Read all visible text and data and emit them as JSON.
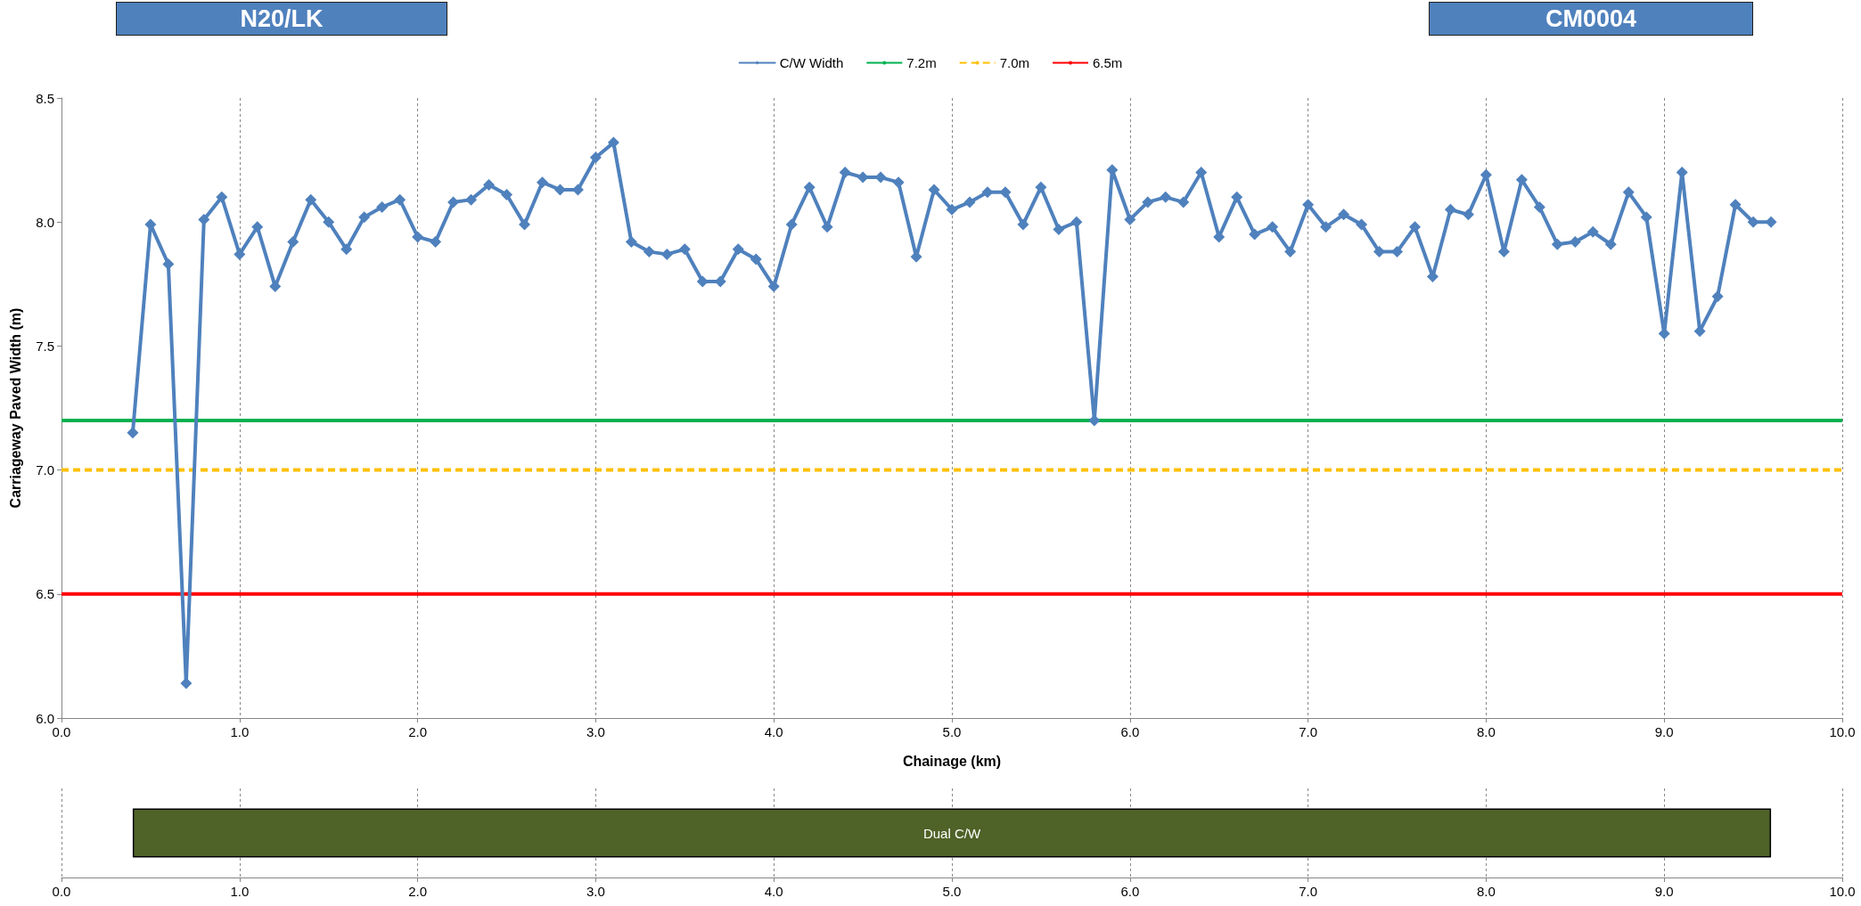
{
  "chart_data": [
    {
      "type": "line",
      "xlabel": "Chainage (km)",
      "ylabel": "Carriageway Paved Width (m)",
      "annotations": [
        "N20/LK",
        "CM0004"
      ],
      "x": [
        0.4,
        0.5,
        0.6,
        0.7,
        0.8,
        0.9,
        1.0,
        1.1,
        1.2,
        1.3,
        1.4,
        1.5,
        1.6,
        1.7,
        1.8,
        1.9,
        2.0,
        2.1,
        2.2,
        2.3,
        2.4,
        2.5,
        2.6,
        2.7,
        2.8,
        2.9,
        3.0,
        3.1,
        3.2,
        3.3,
        3.4,
        3.5,
        3.6,
        3.7,
        3.8,
        3.9,
        4.0,
        4.1,
        4.2,
        4.3,
        4.4,
        4.5,
        4.6,
        4.7,
        4.8,
        4.9,
        5.0,
        5.1,
        5.2,
        5.3,
        5.4,
        5.5,
        5.6,
        5.7,
        5.8,
        5.9,
        6.0,
        6.1,
        6.2,
        6.3,
        6.4,
        6.5,
        6.6,
        6.7,
        6.8,
        6.9,
        7.0,
        7.1,
        7.2,
        7.3,
        7.4,
        7.5,
        7.6,
        7.7,
        7.8,
        7.9,
        8.0,
        8.1,
        8.2,
        8.3,
        8.4,
        8.5,
        8.6,
        8.7,
        8.8,
        8.9,
        9.0,
        9.1,
        9.2,
        9.3,
        9.4,
        9.5,
        9.6
      ],
      "series": [
        {
          "name": "C/W Width",
          "color": "#4f81bd",
          "values": [
            7.15,
            7.99,
            7.83,
            6.14,
            8.01,
            8.1,
            7.87,
            7.98,
            7.74,
            7.92,
            8.09,
            8.0,
            7.89,
            8.02,
            8.06,
            8.09,
            7.94,
            7.92,
            8.08,
            8.09,
            8.15,
            8.11,
            7.99,
            8.16,
            8.13,
            8.13,
            8.26,
            8.32,
            7.92,
            7.88,
            7.87,
            7.89,
            7.76,
            7.76,
            7.89,
            7.85,
            7.74,
            7.99,
            8.14,
            7.98,
            8.2,
            8.18,
            8.18,
            8.16,
            7.86,
            8.13,
            8.05,
            8.08,
            8.12,
            8.12,
            7.99,
            8.14,
            7.97,
            8.0,
            7.2,
            8.21,
            8.01,
            8.08,
            8.1,
            8.08,
            8.2,
            7.94,
            8.1,
            7.95,
            7.98,
            7.88,
            8.07,
            7.98,
            8.03,
            7.99,
            7.88,
            7.88,
            7.98,
            7.78,
            8.05,
            8.03,
            8.19,
            7.88,
            8.17,
            8.06,
            7.91,
            7.92,
            7.96,
            7.91,
            8.12,
            8.02,
            7.55,
            8.2,
            7.56,
            7.7,
            8.07,
            8.0,
            8.0
          ]
        }
      ],
      "ref_lines": [
        {
          "axis": "y",
          "value": 7.2,
          "label": "7.2m",
          "color": "#00b050",
          "line_style": "solid"
        },
        {
          "axis": "y",
          "value": 7.0,
          "label": "7.0m",
          "color": "#ffc000",
          "line_style": "dashed"
        },
        {
          "axis": "y",
          "value": 6.5,
          "label": "6.5m",
          "color": "#ff0000",
          "line_style": "solid"
        }
      ],
      "xlim": [
        0,
        10
      ],
      "ylim": [
        6,
        8.5
      ],
      "xticks": [
        {
          "value": 0,
          "label": "0.0"
        },
        {
          "value": 1,
          "label": "1.0"
        },
        {
          "value": 2,
          "label": "2.0"
        },
        {
          "value": 3,
          "label": "3.0"
        },
        {
          "value": 4,
          "label": "4.0"
        },
        {
          "value": 5,
          "label": "5.0"
        },
        {
          "value": 6,
          "label": "6.0"
        },
        {
          "value": 7,
          "label": "7.0"
        },
        {
          "value": 8,
          "label": "8.0"
        },
        {
          "value": 9,
          "label": "9.0"
        },
        {
          "value": 10,
          "label": "10.0"
        }
      ],
      "yticks": [
        {
          "value": 6,
          "label": "6.0"
        },
        {
          "value": 6.5,
          "label": "6.5"
        },
        {
          "value": 7,
          "label": "7.0"
        },
        {
          "value": 7.5,
          "label": "7.5"
        },
        {
          "value": 8,
          "label": "8.0"
        },
        {
          "value": 8.5,
          "label": "8.5"
        }
      ],
      "grid": "x",
      "legend": "top",
      "marker": "diamond",
      "line_style": "solid"
    },
    {
      "type": "bar",
      "orientation": "horizontal",
      "categories": [
        null
      ],
      "base": [
        0.4
      ],
      "values": [
        9.2
      ],
      "value_labels": [
        "Dual C/W"
      ],
      "colors": [
        "#4f6228"
      ],
      "xlim": [
        0,
        10
      ],
      "xticks": [
        {
          "value": 0,
          "label": "0.0"
        },
        {
          "value": 1,
          "label": "1.0"
        },
        {
          "value": 2,
          "label": "2.0"
        },
        {
          "value": 3,
          "label": "3.0"
        },
        {
          "value": 4,
          "label": "4.0"
        },
        {
          "value": 5,
          "label": "5.0"
        },
        {
          "value": 6,
          "label": "6.0"
        },
        {
          "value": 7,
          "label": "7.0"
        },
        {
          "value": 8,
          "label": "8.0"
        },
        {
          "value": 9,
          "label": "9.0"
        },
        {
          "value": 10,
          "label": "10.0"
        }
      ],
      "grid": "x",
      "tick_labels": "x"
    }
  ]
}
